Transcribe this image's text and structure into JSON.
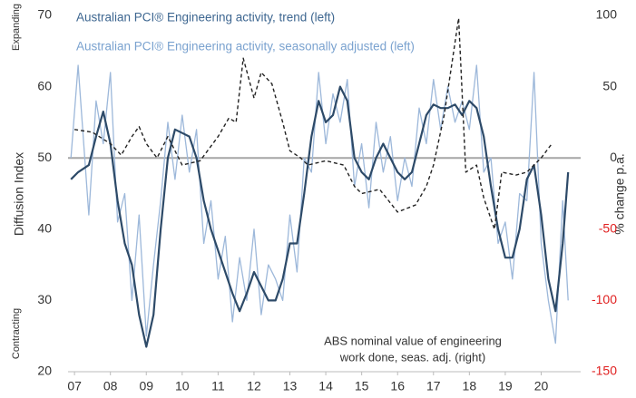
{
  "chart_data": {
    "type": "line",
    "series": [
      {
        "name": "Australian PCI® Engineering activity, trend (left)",
        "color": "#2d4a68",
        "width": 2.2,
        "x": [
          2006.9,
          2007.1,
          2007.4,
          2007.6,
          2007.8,
          2008.0,
          2008.2,
          2008.4,
          2008.6,
          2008.8,
          2009.0,
          2009.2,
          2009.4,
          2009.6,
          2009.8,
          2010.0,
          2010.2,
          2010.4,
          2010.6,
          2010.8,
          2011.0,
          2011.2,
          2011.4,
          2011.6,
          2011.8,
          2012.0,
          2012.2,
          2012.4,
          2012.6,
          2012.8,
          2013.0,
          2013.2,
          2013.4,
          2013.6,
          2013.8,
          2014.0,
          2014.2,
          2014.4,
          2014.6,
          2014.8,
          2015.0,
          2015.2,
          2015.4,
          2015.6,
          2015.8,
          2016.0,
          2016.2,
          2016.4,
          2016.6,
          2016.8,
          2017.0,
          2017.2,
          2017.4,
          2017.6,
          2017.8,
          2018.0,
          2018.2,
          2018.4,
          2018.6,
          2018.8,
          2019.0,
          2019.2,
          2019.4,
          2019.6,
          2019.8,
          2020.0,
          2020.2,
          2020.4,
          2020.6,
          2020.75
        ],
        "values": [
          47,
          48,
          49,
          53,
          56.5,
          52,
          44,
          38,
          35,
          28,
          23.5,
          28,
          40,
          50,
          54,
          53.5,
          53,
          50,
          44,
          40,
          37,
          34,
          31,
          28.5,
          31,
          34,
          32,
          30,
          30,
          33,
          38,
          38,
          45,
          53,
          58,
          55,
          56,
          60,
          58,
          50,
          48,
          47,
          50,
          52,
          50,
          48,
          47,
          48,
          52,
          56,
          57.5,
          57,
          57,
          57.5,
          56,
          58,
          57,
          53,
          46,
          40,
          36,
          36,
          40,
          47,
          49,
          42,
          33,
          28.5,
          38,
          48
        ]
      },
      {
        "name": "Australian PCI® Engineering activity, seasonally adjusted (left)",
        "color": "#9db8da",
        "width": 1.3,
        "x": [
          2006.9,
          2007.1,
          2007.4,
          2007.6,
          2007.8,
          2008.0,
          2008.2,
          2008.4,
          2008.6,
          2008.8,
          2009.0,
          2009.2,
          2009.4,
          2009.6,
          2009.8,
          2010.0,
          2010.2,
          2010.4,
          2010.6,
          2010.8,
          2011.0,
          2011.2,
          2011.4,
          2011.6,
          2011.8,
          2012.0,
          2012.2,
          2012.4,
          2012.6,
          2012.8,
          2013.0,
          2013.2,
          2013.4,
          2013.6,
          2013.8,
          2014.0,
          2014.2,
          2014.4,
          2014.6,
          2014.8,
          2015.0,
          2015.2,
          2015.4,
          2015.6,
          2015.8,
          2016.0,
          2016.2,
          2016.4,
          2016.6,
          2016.8,
          2017.0,
          2017.2,
          2017.4,
          2017.6,
          2017.8,
          2018.0,
          2018.2,
          2018.4,
          2018.6,
          2018.8,
          2019.0,
          2019.2,
          2019.4,
          2019.6,
          2019.8,
          2020.0,
          2020.2,
          2020.4,
          2020.6,
          2020.75
        ],
        "values": [
          50,
          63,
          42,
          58,
          52,
          62,
          41,
          45,
          30,
          42,
          25,
          35,
          44,
          55,
          47,
          56,
          48,
          54,
          38,
          44,
          33,
          39,
          27,
          36,
          30,
          40,
          28,
          35,
          33,
          30,
          42,
          34,
          50,
          48,
          62,
          52,
          59,
          55,
          61,
          46,
          52,
          43,
          55,
          48,
          53,
          44,
          50,
          46,
          57,
          52,
          61,
          54,
          60,
          55,
          58,
          54,
          63,
          48,
          50,
          38,
          41,
          33,
          45,
          44,
          62,
          38,
          30,
          24,
          44,
          30
        ]
      },
      {
        "color": "#222222",
        "width": 1.4,
        "dash": "4,3",
        "axis": "y2",
        "x": [
          2007.0,
          2007.5,
          2008.0,
          2008.3,
          2008.6,
          2008.8,
          2009.0,
          2009.3,
          2009.6,
          2010.0,
          2010.5,
          2011.0,
          2011.3,
          2011.5,
          2011.7,
          2012.0,
          2012.2,
          2012.5,
          2012.8,
          2013.0,
          2013.3,
          2013.5,
          2014.0,
          2014.5,
          2014.8,
          2015.0,
          2015.5,
          2016.0,
          2016.5,
          2016.8,
          2017.0,
          2017.3,
          2017.7,
          2017.9,
          2018.2,
          2018.4,
          2018.7,
          2018.9,
          2019.3,
          2019.6,
          2020.0,
          2020.3
        ],
        "values": [
          20,
          18,
          10,
          2,
          15,
          22,
          10,
          0,
          15,
          -5,
          -2,
          15,
          28,
          25,
          70,
          42,
          60,
          52,
          25,
          5,
          0,
          -5,
          -2,
          -5,
          -20,
          -25,
          -22,
          -38,
          -33,
          -20,
          -5,
          30,
          98,
          -10,
          -5,
          -28,
          -50,
          -10,
          -12,
          -10,
          0,
          10
        ]
      }
    ],
    "annotation": [
      "ABS nominal value of engineering",
      "work done, seas. adj. (right)"
    ],
    "ylabel": "Diffusion Index",
    "y2label": "% change p.a.",
    "top_note": "Expanding",
    "bottom_note": "Contracting",
    "xlim": [
      2006.82,
      2021.1
    ],
    "xticks": [
      {
        "value": 2007,
        "label": "07"
      },
      {
        "value": 2008,
        "label": "08"
      },
      {
        "value": 2009,
        "label": "09"
      },
      {
        "value": 2010,
        "label": "10"
      },
      {
        "value": 2011,
        "label": "11"
      },
      {
        "value": 2012,
        "label": "12"
      },
      {
        "value": 2013,
        "label": "13"
      },
      {
        "value": 2014,
        "label": "14"
      },
      {
        "value": 2015,
        "label": "15"
      },
      {
        "value": 2016,
        "label": "16"
      },
      {
        "value": 2017,
        "label": "17"
      },
      {
        "value": 2018,
        "label": "18"
      },
      {
        "value": 2019,
        "label": "19"
      },
      {
        "value": 2020,
        "label": "20"
      }
    ],
    "ylim": [
      20,
      70
    ],
    "yticks": [
      20,
      30,
      40,
      50,
      60,
      70
    ],
    "y2lim": [
      -150,
      100
    ],
    "y2ticks": [
      -150,
      -100,
      -50,
      0,
      50,
      100
    ],
    "negative_tick_color": "#e02020",
    "reference_line": 50
  }
}
